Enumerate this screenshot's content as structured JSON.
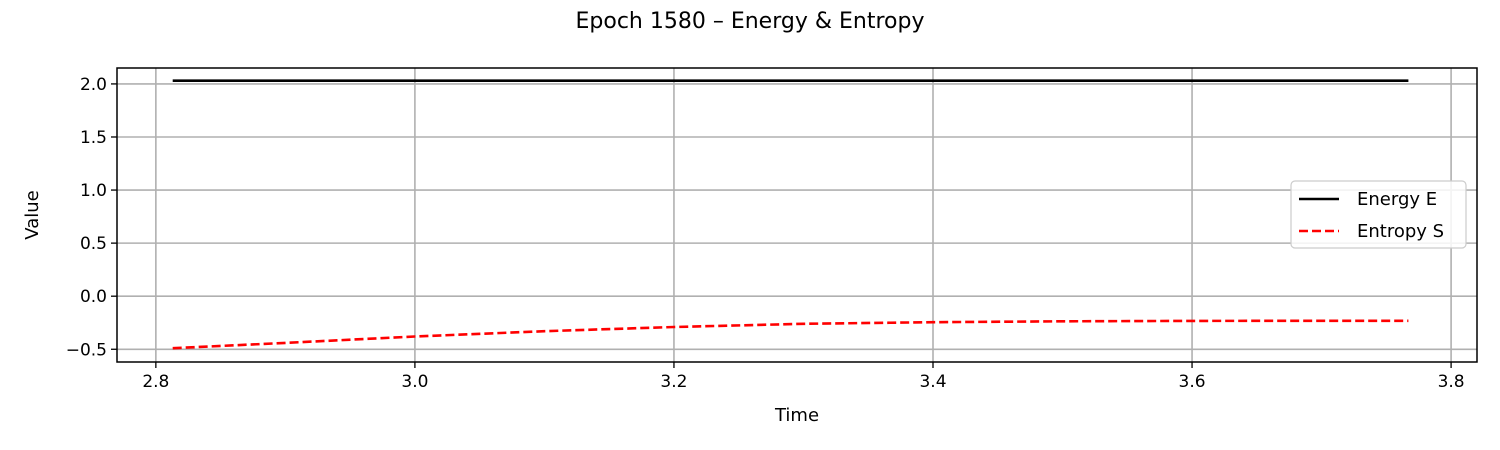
{
  "chart_data": {
    "type": "line",
    "title": "Epoch 1580 – Energy & Entropy",
    "xlabel": "Time",
    "ylabel": "Value",
    "xlim": [
      2.77,
      3.82
    ],
    "ylim": [
      -0.62,
      2.15
    ],
    "xticks": [
      2.8,
      3.0,
      3.2,
      3.4,
      3.6,
      3.8
    ],
    "xtick_labels": [
      "2.8",
      "3.0",
      "3.2",
      "3.4",
      "3.6",
      "3.8"
    ],
    "yticks": [
      -0.5,
      0.0,
      0.5,
      1.0,
      1.5,
      2.0
    ],
    "ytick_labels": [
      "−0.5",
      "0.0",
      "0.5",
      "1.0",
      "1.5",
      "2.0"
    ],
    "grid": true,
    "legend_position": "right",
    "series": [
      {
        "name": "Energy E",
        "color": "#000000",
        "style": "solid",
        "x": [
          2.813,
          3.0,
          3.2,
          3.4,
          3.6,
          3.767
        ],
        "y": [
          2.03,
          2.03,
          2.03,
          2.03,
          2.03,
          2.03
        ]
      },
      {
        "name": "Entropy S",
        "color": "#ff0000",
        "style": "dashed",
        "x": [
          2.813,
          2.9,
          3.0,
          3.1,
          3.2,
          3.3,
          3.4,
          3.5,
          3.6,
          3.7,
          3.767
        ],
        "y": [
          -0.49,
          -0.44,
          -0.38,
          -0.33,
          -0.29,
          -0.26,
          -0.245,
          -0.237,
          -0.233,
          -0.232,
          -0.232
        ]
      }
    ]
  }
}
